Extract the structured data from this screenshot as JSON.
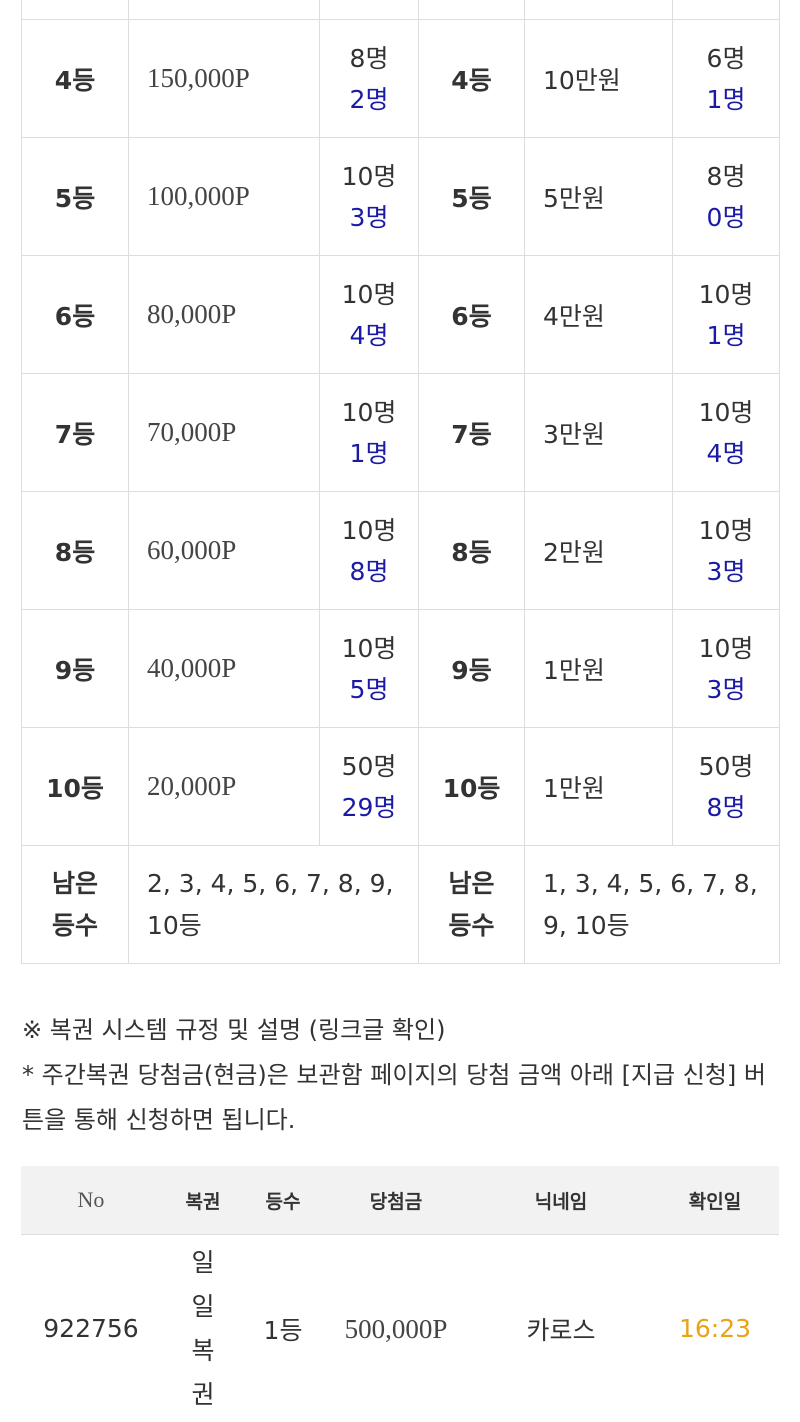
{
  "prize_table": {
    "rows": [
      {
        "rank": "4등",
        "point_amount": "150,000P",
        "point_total": "8명",
        "point_won": "2명",
        "cash_rank": "4등",
        "cash_amount": "10만원",
        "cash_total": "6명",
        "cash_won": "1명"
      },
      {
        "rank": "5등",
        "point_amount": "100,000P",
        "point_total": "10명",
        "point_won": "3명",
        "cash_rank": "5등",
        "cash_amount": "5만원",
        "cash_total": "8명",
        "cash_won": "0명"
      },
      {
        "rank": "6등",
        "point_amount": "80,000P",
        "point_total": "10명",
        "point_won": "4명",
        "cash_rank": "6등",
        "cash_amount": "4만원",
        "cash_total": "10명",
        "cash_won": "1명"
      },
      {
        "rank": "7등",
        "point_amount": "70,000P",
        "point_total": "10명",
        "point_won": "1명",
        "cash_rank": "7등",
        "cash_amount": "3만원",
        "cash_total": "10명",
        "cash_won": "4명"
      },
      {
        "rank": "8등",
        "point_amount": "60,000P",
        "point_total": "10명",
        "point_won": "8명",
        "cash_rank": "8등",
        "cash_amount": "2만원",
        "cash_total": "10명",
        "cash_won": "3명"
      },
      {
        "rank": "9등",
        "point_amount": "40,000P",
        "point_total": "10명",
        "point_won": "5명",
        "cash_rank": "9등",
        "cash_amount": "1만원",
        "cash_total": "10명",
        "cash_won": "3명"
      },
      {
        "rank": "10등",
        "point_amount": "20,000P",
        "point_total": "50명",
        "point_won": "29명",
        "cash_rank": "10등",
        "cash_amount": "1만원",
        "cash_total": "50명",
        "cash_won": "8명"
      }
    ],
    "remaining": {
      "label_line1": "남은",
      "label_line2": "등수",
      "point_value": "2, 3, 4, 5, 6, 7, 8, 9, 10등",
      "cash_value": "1, 3, 4, 5, 6, 7, 8, 9, 10등"
    },
    "colors": {
      "won_count": "#1a1aa6"
    }
  },
  "notes": {
    "rules_link": "※ 복권 시스템 규정 및 설명 (링크글 확인)",
    "cash_info": "* 주간복권 당첨금(현금)은 보관함 페이지의 당첨 금액 아래 [지급 신청] 버튼을 통해 신청하면 됩니다."
  },
  "winners_table": {
    "headers": [
      "No",
      "복권",
      "등수",
      "당첨금",
      "닉네임",
      "확인일"
    ],
    "rows": [
      {
        "no": "922756",
        "lottery": "일일복권",
        "rank": "1등",
        "prize": "500,000P",
        "nickname": "카로스",
        "date": "16:23"
      }
    ],
    "colors": {
      "date": "#e8a317"
    }
  }
}
